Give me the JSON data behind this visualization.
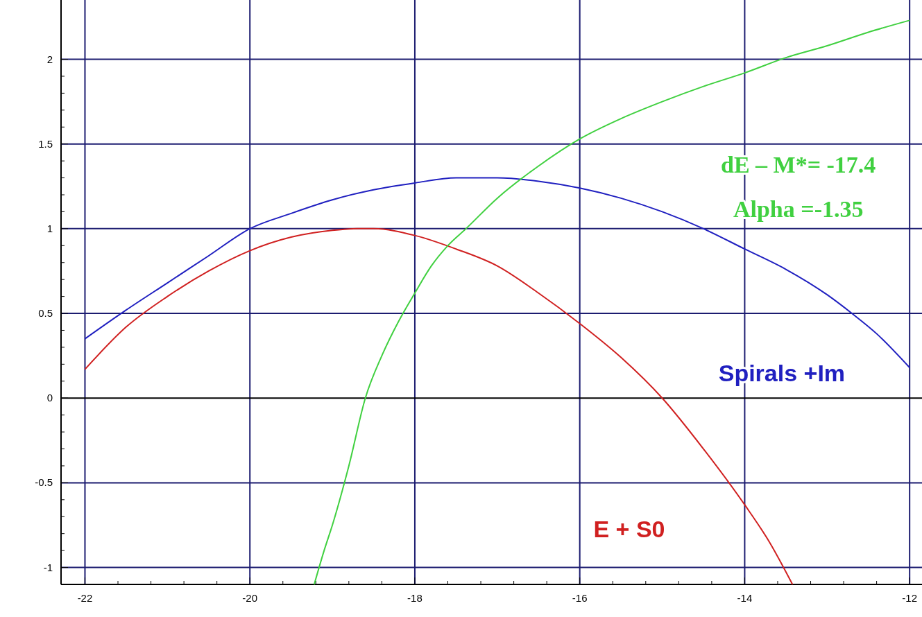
{
  "chart_data": {
    "type": "line",
    "xlim": [
      -22.29,
      -11.85
    ],
    "ylim": [
      -1.1,
      2.35
    ],
    "xticks": [
      -22,
      -20,
      -18,
      -16,
      -14,
      -12
    ],
    "yticks": [
      -1,
      -0.5,
      0,
      0.5,
      1,
      1.5,
      2
    ],
    "grid": true,
    "line_style": "solid",
    "marker": "none",
    "series": [
      {
        "name": "Spirals +Im",
        "color": "#2020c0",
        "x": [
          -22,
          -21.5,
          -21,
          -20.5,
          -20,
          -19.5,
          -19,
          -18.5,
          -18,
          -17.5,
          -17,
          -16.5,
          -16,
          -15.5,
          -15,
          -14.5,
          -14,
          -13.5,
          -13,
          -12.7,
          -12.4,
          -12
        ],
        "values": [
          0.35,
          0.52,
          0.68,
          0.84,
          1.0,
          1.09,
          1.17,
          1.23,
          1.27,
          1.3,
          1.3,
          1.28,
          1.24,
          1.18,
          1.1,
          1.0,
          0.88,
          0.76,
          0.61,
          0.5,
          0.38,
          0.18
        ]
      },
      {
        "name": "E + S0",
        "color": "#d02020",
        "x": [
          -22,
          -21.5,
          -21,
          -20.5,
          -20,
          -19.5,
          -19,
          -18.7,
          -18.5,
          -18,
          -17.5,
          -17,
          -16.5,
          -16,
          -15.5,
          -15,
          -14.5,
          -14,
          -13.7,
          -13.42
        ],
        "values": [
          0.17,
          0.42,
          0.6,
          0.75,
          0.87,
          0.95,
          0.99,
          1.0,
          1.0,
          0.96,
          0.88,
          0.78,
          0.62,
          0.44,
          0.24,
          0.0,
          -0.3,
          -0.63,
          -0.85,
          -1.1
        ]
      },
      {
        "color": "#40d040",
        "x": [
          -19.22,
          -19.1,
          -19,
          -18.8,
          -18.6,
          -18.4,
          -18.2,
          -18,
          -17.8,
          -17.6,
          -17.38,
          -17,
          -16.5,
          -16,
          -15.5,
          -15,
          -14.5,
          -14,
          -13.5,
          -13,
          -12.5,
          -12
        ],
        "values": [
          -1.1,
          -0.9,
          -0.75,
          -0.4,
          0.0,
          0.25,
          0.45,
          0.62,
          0.78,
          0.9,
          1.0,
          1.18,
          1.37,
          1.53,
          1.65,
          1.75,
          1.84,
          1.92,
          2.01,
          2.08,
          2.16,
          2.23
        ]
      }
    ],
    "annotations": [
      "dE – M*= -17.4",
      "Alpha =-1.35"
    ]
  }
}
